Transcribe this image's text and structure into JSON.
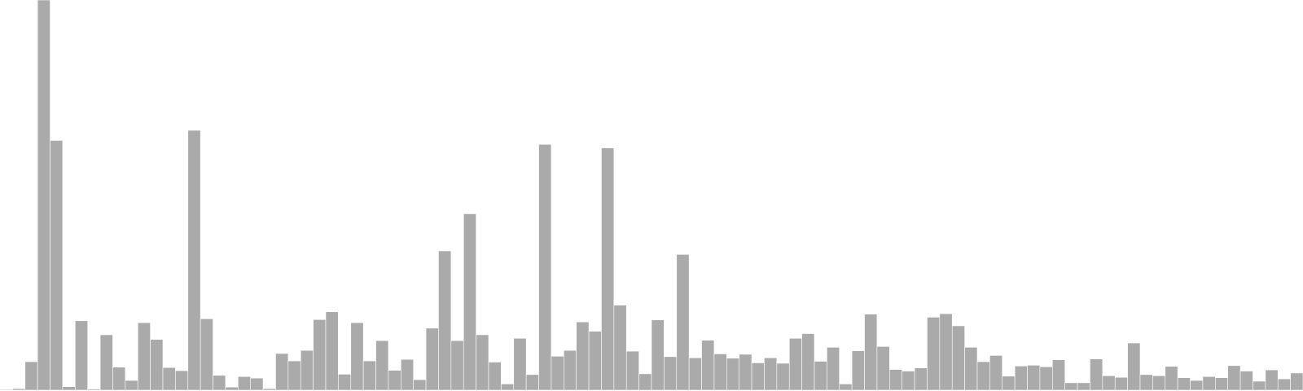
{
  "chart_data": {
    "type": "bar",
    "title": "",
    "xlabel": "",
    "ylabel": "",
    "grid": false,
    "legend": "none",
    "bar_color": "#aaaaaa",
    "background": "#ffffff",
    "ylim": [
      0,
      1000
    ],
    "values": [
      2,
      4,
      73,
      1000,
      640,
      9,
      178,
      3,
      142,
      59,
      25,
      173,
      130,
      58,
      50,
      666,
      183,
      38,
      8,
      35,
      31,
      4,
      94,
      75,
      102,
      181,
      201,
      41,
      173,
      75,
      127,
      51,
      79,
      27,
      159,
      357,
      127,
      452,
      142,
      72,
      16,
      133,
      40,
      630,
      87,
      102,
      175,
      151,
      621,
      218,
      100,
      42,
      180,
      86,
      348,
      83,
      128,
      93,
      82,
      92,
      70,
      83,
      69,
      133,
      145,
      74,
      110,
      16,
      101,
      195,
      112,
      53,
      49,
      57,
      187,
      196,
      165,
      110,
      73,
      89,
      36,
      62,
      64,
      60,
      78,
      19,
      19,
      80,
      37,
      33,
      121,
      40,
      37,
      61,
      32,
      25,
      35,
      32,
      63,
      49,
      23,
      52,
      29,
      44
    ]
  }
}
